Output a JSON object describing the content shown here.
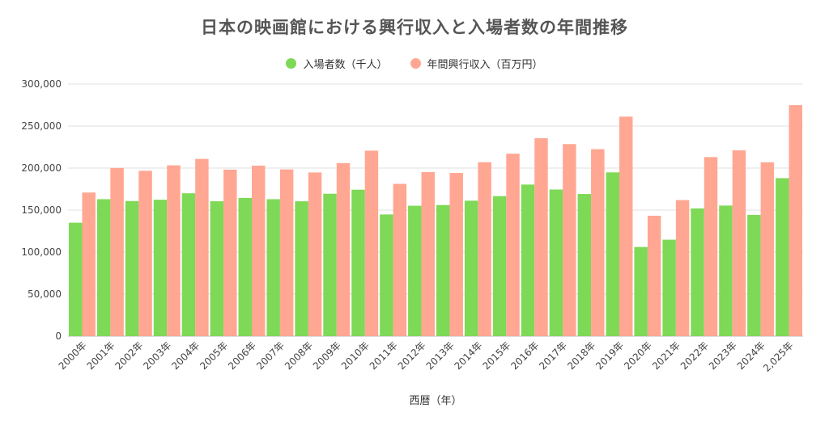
{
  "chart_data": {
    "type": "bar",
    "title": "日本の映画館における興行収入と入場者数の年間推移",
    "xlabel": "西暦（年）",
    "ylabel": "",
    "ylim": [
      0,
      300000
    ],
    "yticks": [
      "0",
      "50,000",
      "100,000",
      "150,000",
      "200,000",
      "250,000",
      "300,000"
    ],
    "grid": true,
    "legend_position": "top-center",
    "categories": [
      "2000年",
      "2001年",
      "2002年",
      "2003年",
      "2004年",
      "2005年",
      "2006年",
      "2007年",
      "2008年",
      "2009年",
      "2010年",
      "2011年",
      "2012年",
      "2013年",
      "2014年",
      "2015年",
      "2016年",
      "2017年",
      "2018年",
      "2019年",
      "2020年",
      "2021年",
      "2022年",
      "2023年",
      "2024年",
      "2,025年"
    ],
    "series": [
      {
        "name": "入場者数（千人）",
        "color": "#7ed957",
        "values": [
          135000,
          163000,
          160800,
          162300,
          170000,
          160500,
          164500,
          163000,
          160500,
          169500,
          174300,
          144800,
          155200,
          156000,
          161200,
          166600,
          180400,
          174500,
          169200,
          194900,
          106100,
          114800,
          152000,
          155400,
          144300,
          188000
        ]
      },
      {
        "name": "年間興行収入（百万円）",
        "color": "#ffa792",
        "values": [
          170900,
          200200,
          196800,
          203300,
          210900,
          198100,
          202900,
          198400,
          194800,
          206000,
          220700,
          181200,
          195200,
          194200,
          207000,
          217100,
          235500,
          228600,
          222500,
          261200,
          143300,
          161900,
          213100,
          221100,
          206900,
          274900
        ]
      }
    ]
  }
}
